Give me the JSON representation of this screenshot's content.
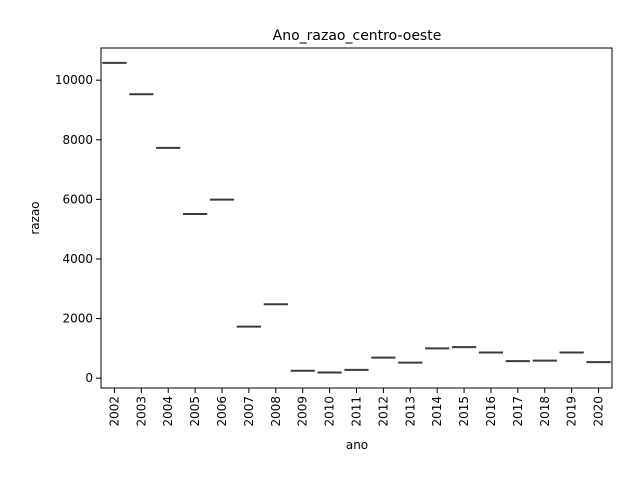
{
  "chart_data": {
    "type": "box",
    "title": "Ano_razao_centro-oeste",
    "xlabel": "ano",
    "ylabel": "razao",
    "categories": [
      "2002",
      "2003",
      "2004",
      "2005",
      "2006",
      "2007",
      "2008",
      "2009",
      "2010",
      "2011",
      "2012",
      "2013",
      "2014",
      "2015",
      "2016",
      "2017",
      "2018",
      "2019",
      "2020"
    ],
    "values": [
      10580,
      9530,
      7730,
      5510,
      5990,
      1730,
      2480,
      250,
      190,
      280,
      690,
      520,
      1000,
      1040,
      860,
      570,
      590,
      860,
      540
    ],
    "ylim": [
      -330,
      11080
    ],
    "yticks": [
      0,
      2000,
      4000,
      6000,
      8000,
      10000
    ],
    "grid": false,
    "line_color": "#3a3a3a"
  }
}
